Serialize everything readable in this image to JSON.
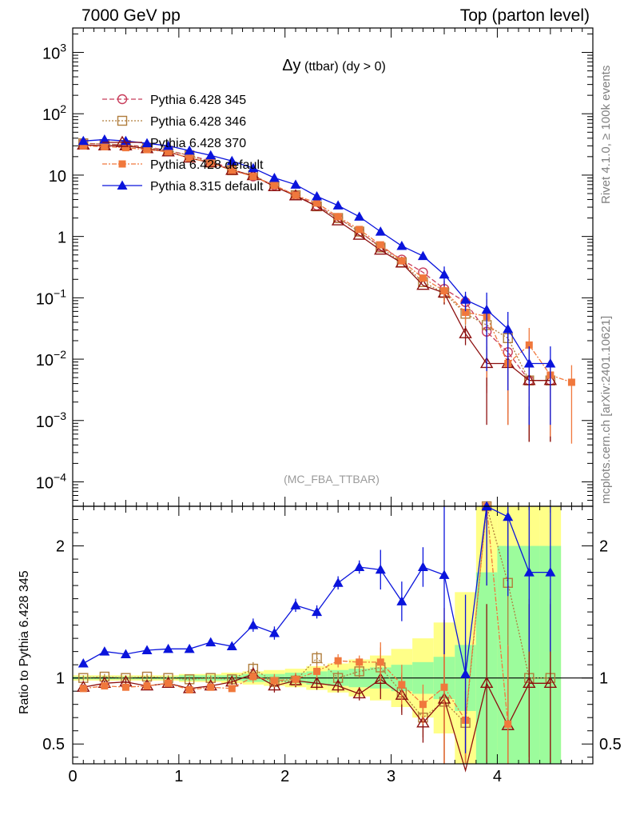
{
  "header": {
    "left": "7000 GeV pp",
    "right": "Top (parton level)",
    "side_right_top": "Rivet 4.1.0, ≥ 100k events",
    "side_right_bottom": "mcplots.cern.ch [arXiv:2401.10621]"
  },
  "chart_data": [
    {
      "type": "line",
      "scale": "log",
      "title_main": "Δy",
      "title_rest": " (ttbar) (dy > 0)",
      "watermark": "(MC_FBA_TTBAR)",
      "ylim": [
        4e-05,
        2500
      ],
      "xlim": [
        0,
        4.9
      ],
      "ytick_labels": [
        {
          "v": 1000,
          "base": "10",
          "exp": "3"
        },
        {
          "v": 100,
          "base": "10",
          "exp": "2"
        },
        {
          "v": 10,
          "base": "10",
          "exp": ""
        },
        {
          "v": 1,
          "base": "1",
          "exp": ""
        },
        {
          "v": 0.1,
          "base": "10",
          "exp": "−1"
        },
        {
          "v": 0.01,
          "base": "10",
          "exp": "−2"
        },
        {
          "v": 0.001,
          "base": "10",
          "exp": "−3"
        },
        {
          "v": 0.0001,
          "base": "10",
          "exp": "−4"
        }
      ],
      "x": [
        0.1,
        0.3,
        0.5,
        0.7,
        0.9,
        1.1,
        1.3,
        1.5,
        1.7,
        1.9,
        2.1,
        2.3,
        2.5,
        2.7,
        2.9,
        3.1,
        3.3,
        3.5,
        3.7,
        3.9,
        4.1,
        4.3,
        4.5,
        4.7
      ],
      "series": [
        {
          "name": "Pythia 6.428 345",
          "color": "#c83c5a",
          "marker": "circle",
          "dash": "6,3",
          "values": [
            33,
            32,
            31,
            29,
            25,
            21,
            17,
            12.5,
            9.5,
            6.8,
            4.7,
            3.2,
            2.0,
            1.2,
            0.68,
            0.42,
            0.26,
            0.14,
            0.085,
            0.028,
            0.013,
            0.0045,
            0.0045,
            null
          ]
        },
        {
          "name": "Pythia 6.428 346",
          "color": "#b07d3c",
          "marker": "square-open",
          "dash": "2,2",
          "values": [
            33,
            32,
            31,
            28,
            25,
            21,
            16,
            12,
            10,
            6.6,
            4.7,
            3.1,
            2.0,
            1.2,
            0.66,
            0.38,
            0.18,
            0.12,
            0.055,
            0.036,
            0.022,
            0.0045,
            0.0045,
            null
          ]
        },
        {
          "name": "Pythia 6.428 370",
          "color": "#8c0f0f",
          "marker": "triangle-open",
          "dash": "",
          "values": [
            31,
            30,
            30,
            27,
            24,
            19,
            16,
            12,
            9.8,
            6.5,
            4.6,
            3.1,
            1.8,
            1.05,
            0.6,
            0.37,
            0.16,
            0.12,
            0.026,
            0.0085,
            0.0085,
            0.0045,
            0.0045,
            null
          ]
        },
        {
          "name": "Pythia 6.428 default",
          "color": "#f0783c",
          "marker": "square",
          "dash": "6,2,2,2",
          "values": [
            30,
            29,
            28,
            26,
            24,
            19,
            16,
            12,
            9.5,
            6.8,
            4.7,
            3.5,
            2.1,
            1.3,
            0.73,
            0.4,
            0.21,
            0.13,
            0.058,
            0.05,
            0.0085,
            0.017,
            0.0055,
            0.0042
          ]
        },
        {
          "name": "Pythia 8.315 default",
          "color": "#0a14dc",
          "marker": "triangle",
          "dash": "",
          "values": [
            36,
            38,
            36,
            33,
            30,
            25,
            21,
            17,
            13,
            9.0,
            7.0,
            4.5,
            3.2,
            2.1,
            1.2,
            0.7,
            0.48,
            0.24,
            0.093,
            0.064,
            0.031,
            0.0085,
            0.0085,
            null
          ]
        }
      ]
    },
    {
      "type": "line",
      "ylabel": "Ratio to Pythia 6.428 345",
      "ylim": [
        0.35,
        2.3
      ],
      "xlim": [
        0,
        4.9
      ],
      "yticks": [
        "0.5",
        "1",
        "2"
      ],
      "xticks": [
        "0",
        "1",
        "2",
        "3",
        "4"
      ],
      "series": [
        {
          "name": "Pythia 6.428 346",
          "values": [
            1.0,
            1.01,
            1.0,
            1.01,
            1.0,
            0.99,
            1.0,
            0.99,
            1.07,
            0.97,
            0.98,
            1.15,
            1.0,
            1.05,
            1.08,
            0.89,
            0.7,
            0.82,
            0.66,
            2.3,
            1.72,
            1.0,
            1.0,
            null
          ]
        },
        {
          "name": "Pythia 6.428 370",
          "values": [
            0.93,
            0.96,
            0.97,
            0.94,
            0.96,
            0.92,
            0.94,
            0.97,
            1.03,
            0.94,
            0.98,
            0.96,
            0.94,
            0.88,
            0.99,
            0.87,
            0.66,
            0.84,
            0.3,
            0.96,
            0.64,
            0.96,
            0.96,
            null
          ]
        },
        {
          "name": "Pythia 6.428 default",
          "values": [
            0.92,
            0.94,
            0.93,
            0.94,
            0.96,
            0.91,
            0.93,
            0.92,
            1.01,
            0.98,
            0.99,
            1.05,
            1.13,
            1.12,
            1.12,
            0.95,
            0.8,
            0.93,
            0.68,
            2.3,
            0.65,
            null,
            null,
            null
          ]
        },
        {
          "name": "Pythia 8.315 default",
          "values": [
            1.11,
            1.2,
            1.18,
            1.21,
            1.22,
            1.22,
            1.27,
            1.24,
            1.4,
            1.34,
            1.55,
            1.5,
            1.72,
            1.84,
            1.82,
            1.58,
            1.84,
            1.78,
            1.03,
            2.3,
            2.22,
            1.8,
            1.8,
            null
          ]
        }
      ],
      "band_yellow_halfwidth": [
        0.02,
        0.02,
        0.02,
        0.02,
        0.02,
        0.03,
        0.03,
        0.04,
        0.05,
        0.06,
        0.07,
        0.09,
        0.11,
        0.14,
        0.17,
        0.22,
        0.3,
        0.42,
        0.65,
        1.6,
        2.0,
        2.0,
        2.0
      ],
      "band_green_halfwidth": [
        0.01,
        0.01,
        0.01,
        0.01,
        0.01,
        0.02,
        0.02,
        0.02,
        0.03,
        0.03,
        0.04,
        0.05,
        0.06,
        0.07,
        0.08,
        0.1,
        0.12,
        0.16,
        0.25,
        0.8,
        1.0,
        1.0,
        1.0
      ]
    }
  ]
}
